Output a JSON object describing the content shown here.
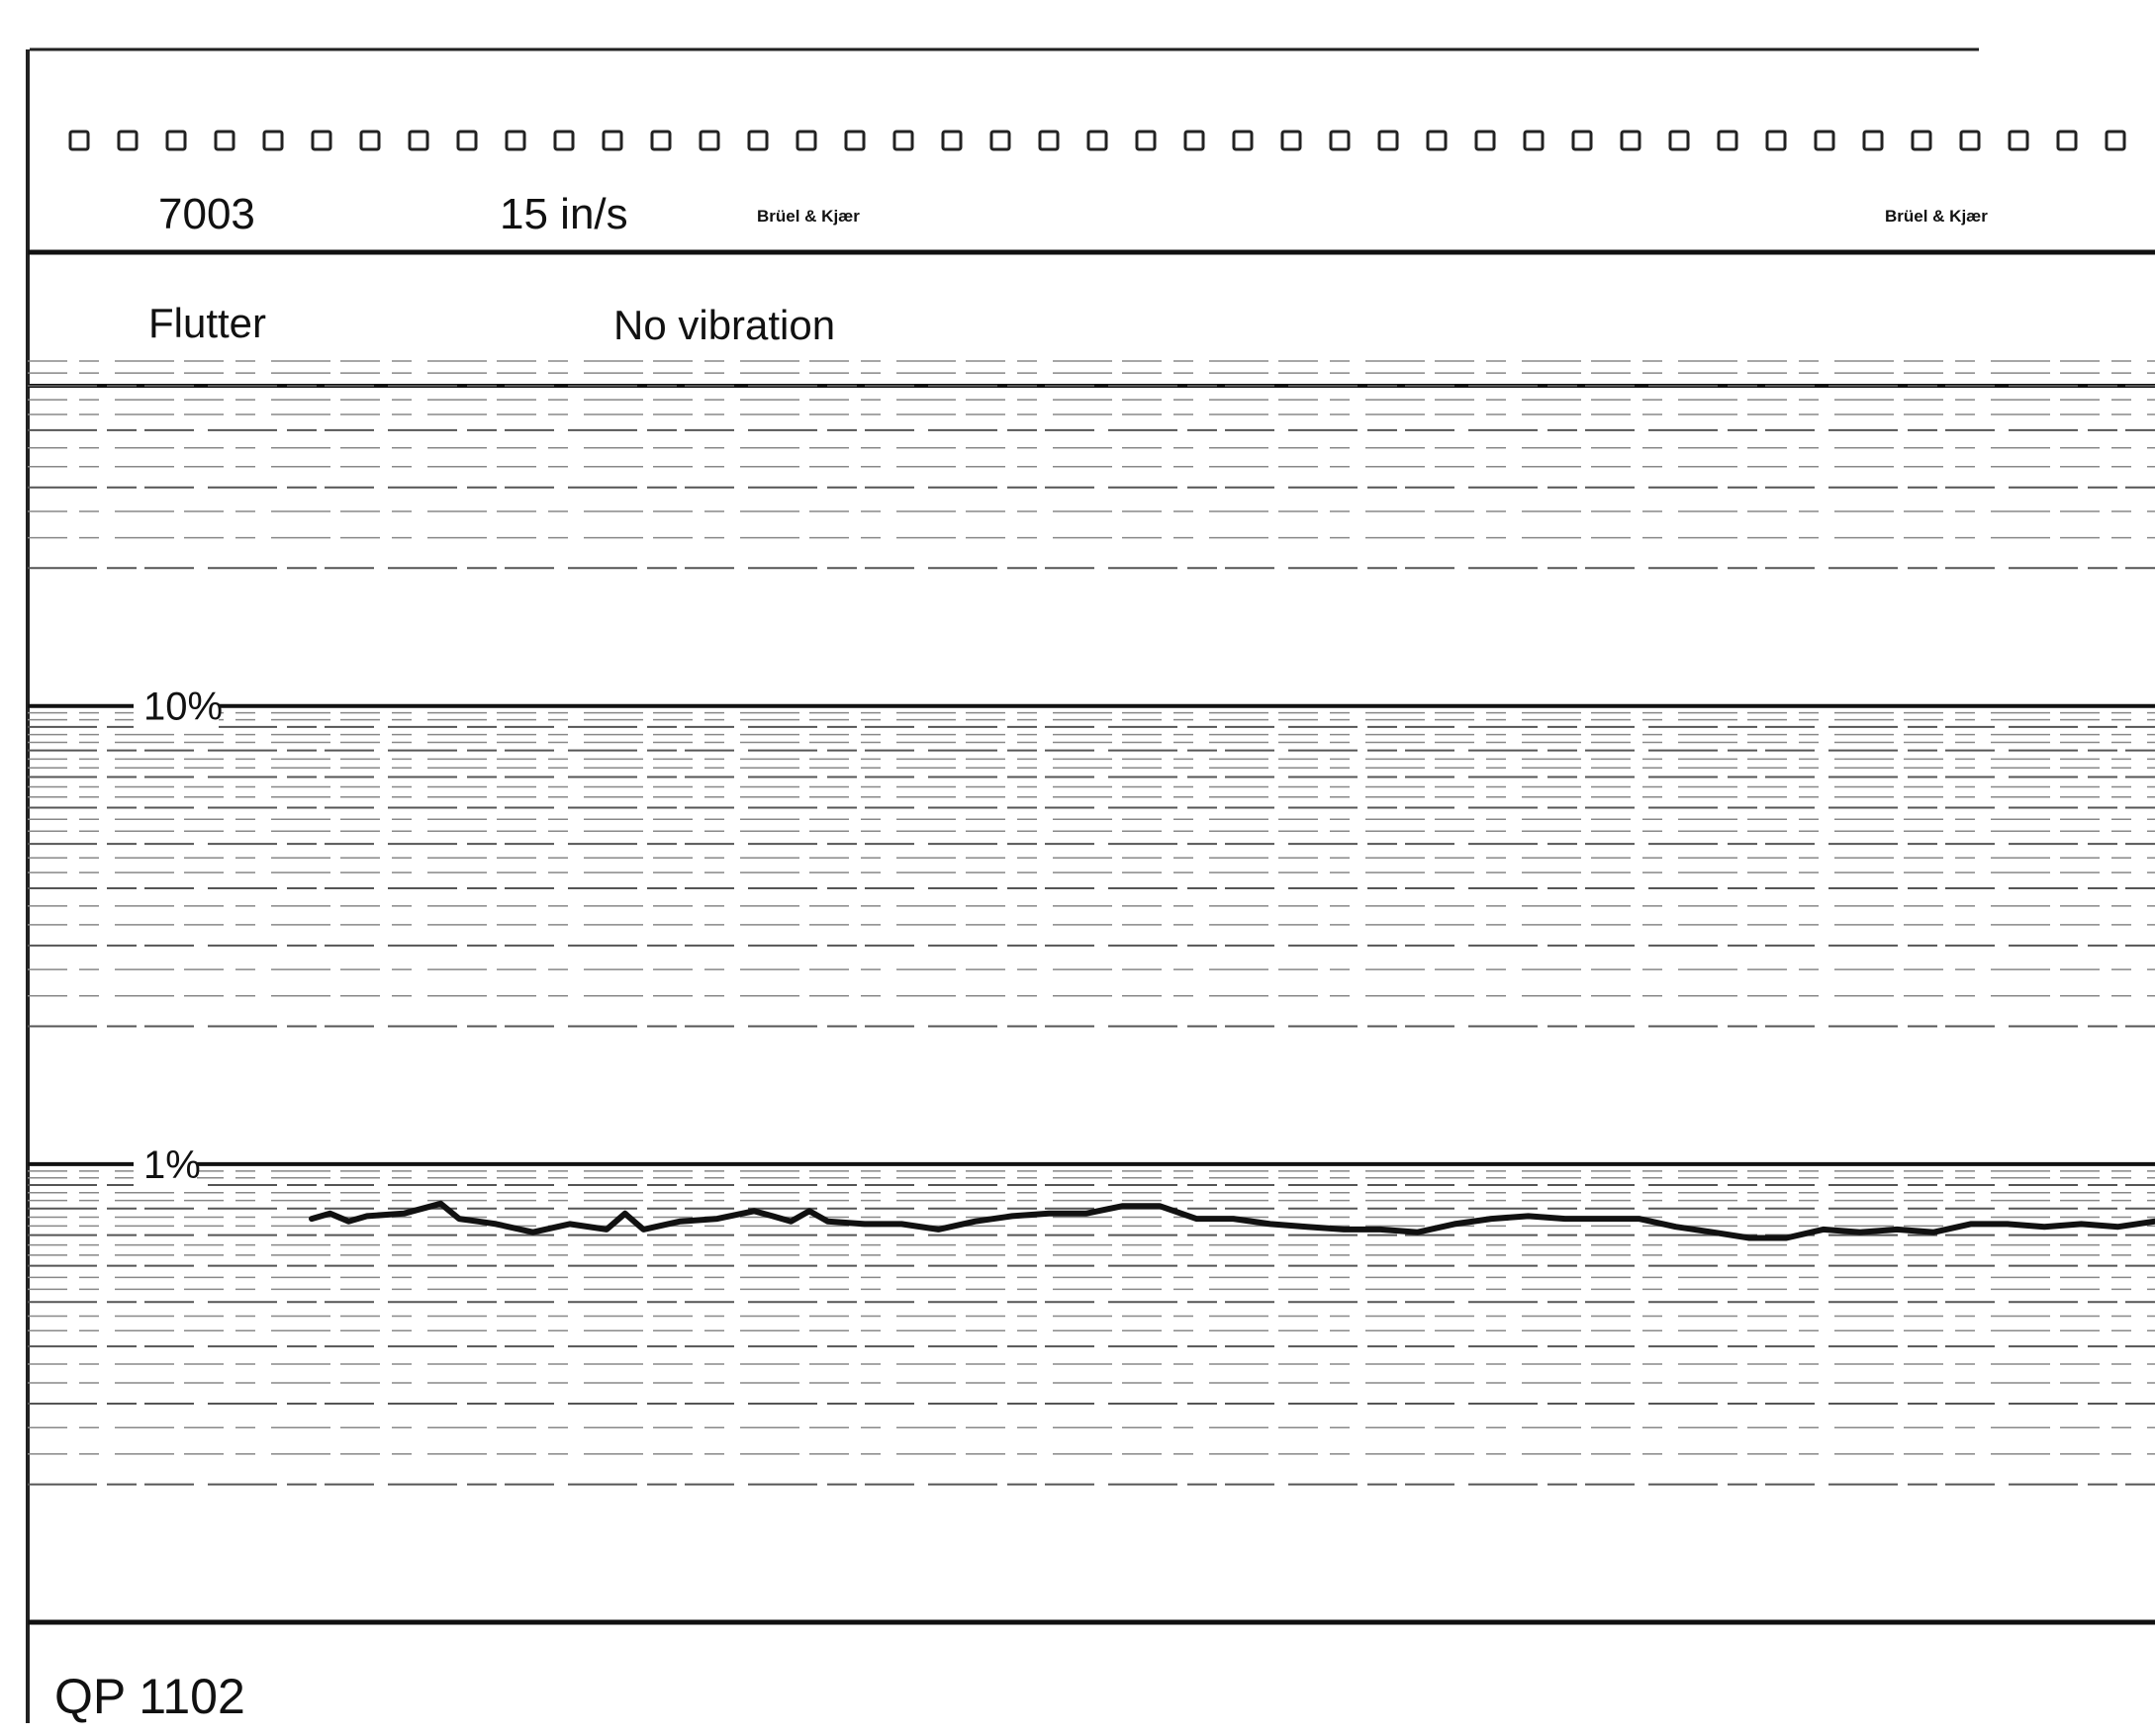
{
  "header": {
    "model": "7003",
    "tape_speed": "15  in/s",
    "brand_left": "Brüel & Kjær",
    "brand_right": "Brüel & Kjær"
  },
  "measurement": {
    "quantity": "Flutter",
    "condition": "No vibration"
  },
  "form_number": "QP 1102",
  "colors": {
    "ink": "#111111",
    "paper": "#ffffff"
  },
  "chart_data": {
    "type": "line",
    "title": "",
    "xlabel": "",
    "ylabel": "",
    "y_scale": "log",
    "ylim": [
      0.1,
      50
    ],
    "grid": true,
    "legend": "none",
    "y_ticks": [
      {
        "value": 10,
        "label": "10%"
      },
      {
        "value": 1,
        "label": "1%"
      }
    ],
    "x": [
      0.0,
      0.01,
      0.02,
      0.03,
      0.05,
      0.07,
      0.08,
      0.09,
      0.1,
      0.12,
      0.14,
      0.16,
      0.17,
      0.18,
      0.2,
      0.22,
      0.24,
      0.25,
      0.26,
      0.27,
      0.28,
      0.3,
      0.32,
      0.34,
      0.36,
      0.38,
      0.4,
      0.42,
      0.44,
      0.46,
      0.48,
      0.5,
      0.52,
      0.54,
      0.56,
      0.58,
      0.6,
      0.62,
      0.64,
      0.66,
      0.68,
      0.7,
      0.72,
      0.74,
      0.76,
      0.78,
      0.8,
      0.82,
      0.84,
      0.86,
      0.88,
      0.9,
      0.92,
      0.94,
      0.96,
      0.98,
      1.0
    ],
    "series": [
      {
        "values": [
          0.76,
          0.78,
          0.75,
          0.77,
          0.78,
          0.82,
          0.76,
          0.75,
          0.74,
          0.71,
          0.74,
          0.72,
          0.78,
          0.72,
          0.75,
          0.76,
          0.79,
          0.77,
          0.75,
          0.79,
          0.75,
          0.74,
          0.74,
          0.72,
          0.75,
          0.77,
          0.78,
          0.78,
          0.81,
          0.81,
          0.76,
          0.76,
          0.74,
          0.73,
          0.72,
          0.72,
          0.71,
          0.74,
          0.76,
          0.77,
          0.76,
          0.76,
          0.76,
          0.73,
          0.71,
          0.69,
          0.69,
          0.72,
          0.71,
          0.72,
          0.71,
          0.74,
          0.74,
          0.73,
          0.74,
          0.73,
          0.75
        ]
      }
    ]
  }
}
